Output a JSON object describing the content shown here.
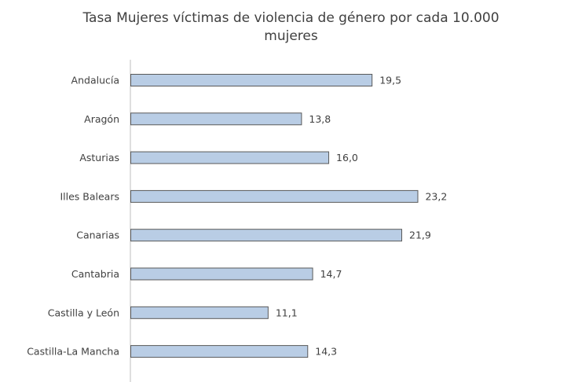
{
  "chart_data": {
    "type": "bar",
    "orientation": "horizontal",
    "title_line1": "Tasa Mujeres víctimas de violencia de género por cada 10.000",
    "title_line2": "mujeres",
    "categories": [
      "Andalucía",
      "Aragón",
      "Asturias",
      "Illes Balears",
      "Canarias",
      "Cantabria",
      "Castilla y León",
      "Castilla-La Mancha"
    ],
    "values": [
      19.5,
      13.8,
      16.0,
      23.2,
      21.9,
      14.7,
      11.1,
      14.3
    ],
    "value_labels": [
      "19,5",
      "13,8",
      "16,0",
      "23,2",
      "21,9",
      "14,7",
      "11,1",
      "14,3"
    ],
    "xlim": [
      0,
      36.5
    ],
    "grid": false,
    "legend": "none",
    "colors": {
      "bar_fill": "#b9cde5",
      "bar_stroke": "#595959",
      "axis": "#bfbfbf",
      "text": "#404040"
    }
  }
}
